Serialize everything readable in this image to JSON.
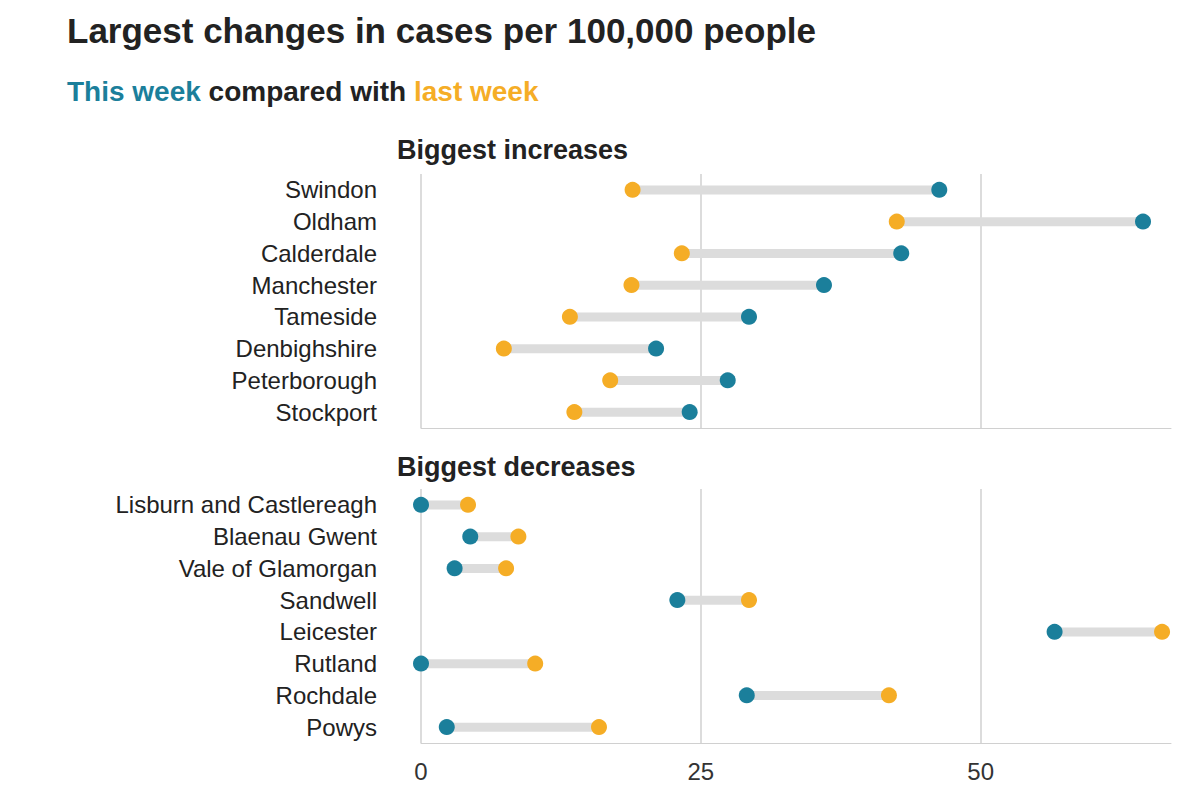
{
  "chart_data": {
    "type": "dumbbell",
    "title": "Largest changes in cases per 100,000 people",
    "subtitle": "This week compared with last week",
    "orientation": "horizontal",
    "grid": true,
    "xlim": [
      0,
      67
    ],
    "xticks": [
      0,
      25,
      50
    ],
    "panels": [
      {
        "title": "Biggest increases",
        "categories": [
          "Swindon",
          "Oldham",
          "Calderdale",
          "Manchester",
          "Tameside",
          "Denbighshire",
          "Peterborough",
          "Stockport"
        ],
        "series": [
          {
            "name": "This week",
            "color": "#1b7f9b",
            "values": [
              46.3,
              64.5,
              42.9,
              36.0,
              29.3,
              21.0,
              27.4,
              24.0
            ]
          },
          {
            "name": "last week",
            "color": "#f5ad26",
            "values": [
              18.9,
              42.5,
              23.3,
              18.8,
              13.3,
              7.4,
              16.9,
              13.7
            ]
          }
        ]
      },
      {
        "title": "Biggest decreases",
        "categories": [
          "Lisburn and Castlereagh",
          "Blaenau Gwent",
          "Vale of Glamorgan",
          "Sandwell",
          "Leicester",
          "Rutland",
          "Rochdale",
          "Powys"
        ],
        "series": [
          {
            "name": "This week",
            "color": "#1b7f9b",
            "values": [
              0,
              4.4,
              3.0,
              22.9,
              56.6,
              0,
              29.1,
              2.3
            ]
          },
          {
            "name": "last week",
            "color": "#f5ad26",
            "values": [
              4.2,
              8.7,
              7.6,
              29.3,
              66.2,
              10.2,
              41.8,
              15.9
            ]
          }
        ]
      }
    ]
  }
}
